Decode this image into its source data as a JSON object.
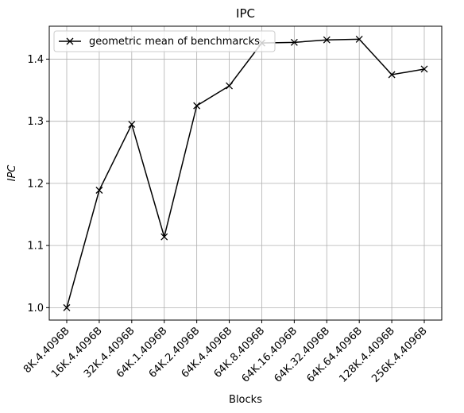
{
  "chart_data": {
    "type": "line",
    "title": "IPC",
    "xlabel": "Blocks",
    "ylabel": "IPC",
    "categories": [
      "8K.4.4096B",
      "16K.4.4096B",
      "32K.4.4096B",
      "64K.1.4096B",
      "64K.2.4096B",
      "64K.4.4096B",
      "64K.8.4096B",
      "64K.16.4096B",
      "64K.32.4096B",
      "64K.64.4096B",
      "128K.4.4096B",
      "256K.4.4096B"
    ],
    "series": [
      {
        "name": "geometric mean of benchmarcks",
        "values": [
          1.0,
          1.189,
          1.295,
          1.114,
          1.325,
          1.357,
          1.426,
          1.427,
          1.431,
          1.432,
          1.375,
          1.384
        ],
        "color": "#000000",
        "marker": "x"
      }
    ],
    "ylim": [
      0.98,
      1.453
    ],
    "yticks": [
      1.0,
      1.1,
      1.2,
      1.3,
      1.4
    ],
    "grid": true,
    "legend_position": "top-left"
  }
}
